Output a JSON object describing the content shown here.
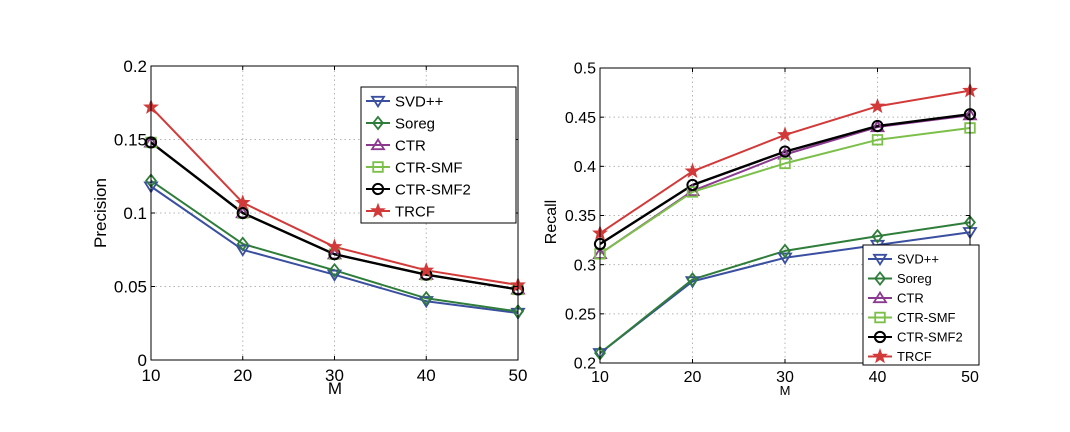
{
  "chart_data": [
    {
      "type": "line",
      "xlabel": "M",
      "ylabel": "Precision",
      "x": [
        10,
        20,
        30,
        40,
        50
      ],
      "xlim": [
        10,
        50
      ],
      "ylim": [
        0,
        0.2
      ],
      "xticks": [
        "10",
        "20",
        "30",
        "40",
        "50"
      ],
      "yticks": [
        "0",
        "0.05",
        "0.1",
        "0.15",
        "0.2"
      ],
      "grid": true,
      "legend_position": "top-right",
      "series": [
        {
          "name": "SVD++",
          "values": [
            0.118,
            0.075,
            0.058,
            0.04,
            0.032
          ]
        },
        {
          "name": "Soreg",
          "values": [
            0.122,
            0.079,
            0.061,
            0.042,
            0.033
          ]
        },
        {
          "name": "CTR",
          "values": [
            0.148,
            0.1,
            0.072,
            0.058,
            0.048
          ]
        },
        {
          "name": "CTR-SMF",
          "values": [
            0.148,
            0.1,
            0.072,
            0.058,
            0.048
          ]
        },
        {
          "name": "CTR-SMF2",
          "values": [
            0.148,
            0.1,
            0.072,
            0.058,
            0.048
          ]
        },
        {
          "name": "TRCF",
          "values": [
            0.172,
            0.107,
            0.077,
            0.061,
            0.051
          ]
        }
      ]
    },
    {
      "type": "line",
      "xlabel": "M",
      "ylabel": "Recall",
      "x": [
        10,
        20,
        30,
        40,
        50
      ],
      "xlim": [
        10,
        50
      ],
      "ylim": [
        0.2,
        0.5
      ],
      "xticks": [
        "10",
        "20",
        "30",
        "40",
        "50"
      ],
      "yticks": [
        "0.2",
        "0.25",
        "0.3",
        "0.35",
        "0.4",
        "0.45",
        "0.5"
      ],
      "grid": true,
      "legend_position": "bottom-right",
      "series": [
        {
          "name": "SVD++",
          "values": [
            0.21,
            0.283,
            0.307,
            0.32,
            0.333
          ]
        },
        {
          "name": "Soreg",
          "values": [
            0.21,
            0.285,
            0.314,
            0.329,
            0.343
          ]
        },
        {
          "name": "CTR",
          "values": [
            0.311,
            0.375,
            0.412,
            0.44,
            0.452
          ]
        },
        {
          "name": "CTR-SMF",
          "values": [
            0.311,
            0.374,
            0.403,
            0.427,
            0.439
          ]
        },
        {
          "name": "CTR-SMF2",
          "values": [
            0.321,
            0.381,
            0.415,
            0.441,
            0.453
          ]
        },
        {
          "name": "TRCF",
          "values": [
            0.332,
            0.395,
            0.432,
            0.461,
            0.477
          ]
        }
      ]
    }
  ],
  "series_styles": [
    {
      "color": "#3a4fa0",
      "marker": "triangle-down"
    },
    {
      "color": "#2f7d3a",
      "marker": "diamond"
    },
    {
      "color": "#8b3a8f",
      "marker": "triangle-up"
    },
    {
      "color": "#7cbf4a",
      "marker": "square"
    },
    {
      "color": "#000000",
      "marker": "circle"
    },
    {
      "color": "#d23a3a",
      "marker": "star"
    }
  ]
}
